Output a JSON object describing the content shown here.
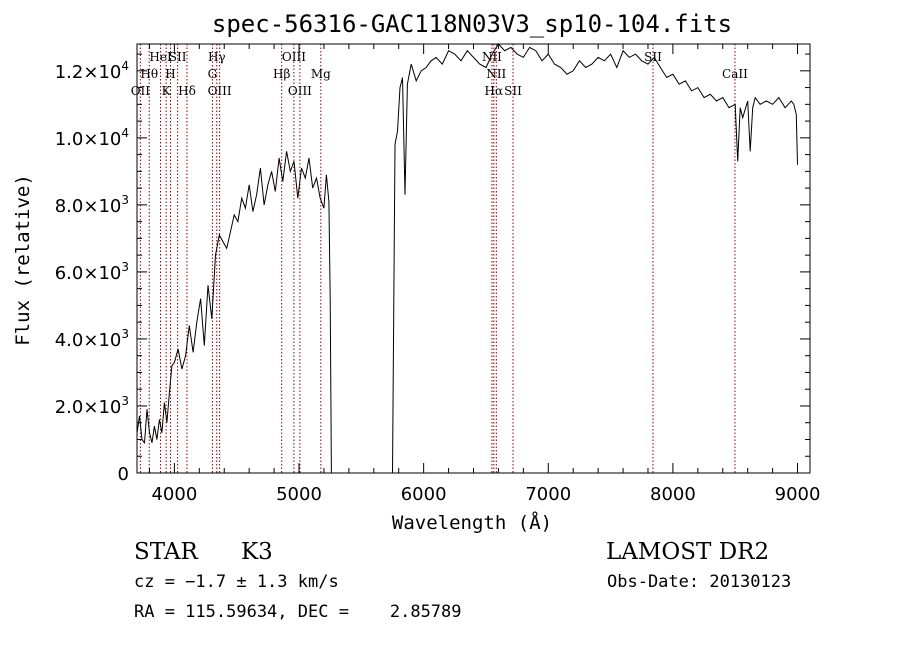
{
  "chart_data": {
    "type": "line",
    "title": "spec-56316-GAC118N03V3_sp10-104.fits",
    "xlabel": "Wavelength (Å)",
    "ylabel": "Flux (relative)",
    "xlim": [
      3700,
      9100
    ],
    "ylim": [
      0,
      12800
    ],
    "xticks": [
      4000,
      5000,
      6000,
      7000,
      8000,
      9000
    ],
    "xtick_labels": [
      "4000",
      "5000",
      "6000",
      "7000",
      "8000",
      "9000"
    ],
    "yticks": [
      0,
      2000,
      4000,
      6000,
      8000,
      10000,
      12000
    ],
    "ytick_labels": [
      {
        "mant": "0",
        "exp": ""
      },
      {
        "mant": "2.0×10",
        "exp": "3"
      },
      {
        "mant": "4.0×10",
        "exp": "3"
      },
      {
        "mant": "6.0×10",
        "exp": "3"
      },
      {
        "mant": "8.0×10",
        "exp": "3"
      },
      {
        "mant": "1.0×10",
        "exp": "4"
      },
      {
        "mant": "1.2×10",
        "exp": "4"
      }
    ],
    "grid": false,
    "line_color": "#000000",
    "marker_color": "#8b0000",
    "series": [
      {
        "x": [
          3700,
          3720,
          3740,
          3760,
          3780,
          3800,
          3820,
          3840,
          3860,
          3880,
          3900,
          3920,
          3940,
          3960,
          3980,
          4000,
          4030,
          4060,
          4090,
          4120,
          4150,
          4180,
          4210,
          4240,
          4270,
          4300,
          4330,
          4360,
          4390,
          4420,
          4450,
          4480,
          4510,
          4540,
          4570,
          4600,
          4630,
          4660,
          4690,
          4720,
          4750,
          4780,
          4810,
          4840,
          4870,
          4900,
          4930,
          4960,
          4990,
          5020,
          5050,
          5080,
          5110,
          5140,
          5170,
          5200,
          5220,
          5240,
          5250,
          5260,
          5750,
          5770,
          5790,
          5810,
          5830,
          5850,
          5870,
          5900,
          5940,
          5980,
          6020,
          6060,
          6100,
          6150,
          6200,
          6250,
          6300,
          6350,
          6400,
          6450,
          6500,
          6550,
          6600,
          6650,
          6700,
          6750,
          6800,
          6850,
          6900,
          6950,
          7000,
          7050,
          7100,
          7150,
          7200,
          7250,
          7300,
          7350,
          7400,
          7450,
          7500,
          7550,
          7600,
          7650,
          7700,
          7750,
          7800,
          7850,
          7900,
          7950,
          8000,
          8050,
          8100,
          8150,
          8200,
          8250,
          8300,
          8350,
          8400,
          8450,
          8500,
          8520,
          8540,
          8560,
          8600,
          8620,
          8640,
          8660,
          8700,
          8750,
          8800,
          8850,
          8900,
          8950,
          8970,
          8990,
          9000
        ],
        "y": [
          1200,
          1700,
          1000,
          900,
          1900,
          1200,
          900,
          1400,
          1000,
          1600,
          1200,
          2100,
          1500,
          2400,
          3200,
          3300,
          3700,
          3100,
          3500,
          4400,
          3600,
          4500,
          5200,
          3800,
          5600,
          4600,
          6500,
          7100,
          6900,
          6700,
          7200,
          7700,
          7500,
          8200,
          7900,
          8600,
          7800,
          8300,
          9100,
          8000,
          8600,
          9000,
          8400,
          9400,
          8700,
          9600,
          9000,
          9300,
          8200,
          9100,
          8800,
          9400,
          8500,
          8800,
          8200,
          7900,
          8900,
          8100,
          5200,
          0,
          0,
          9800,
          10200,
          11500,
          11800,
          8300,
          11600,
          12200,
          11700,
          12000,
          12100,
          12300,
          12400,
          12200,
          12600,
          12500,
          12300,
          12600,
          12400,
          12200,
          12100,
          12500,
          12800,
          12600,
          12700,
          12500,
          12400,
          12700,
          12600,
          12300,
          12500,
          12200,
          12100,
          11900,
          12000,
          12300,
          12100,
          12200,
          12400,
          12300,
          12500,
          12100,
          12600,
          12400,
          12500,
          12300,
          12200,
          12400,
          12100,
          11800,
          11900,
          11600,
          11700,
          11400,
          11500,
          11200,
          11300,
          11100,
          11200,
          10900,
          11000,
          9300,
          10900,
          10600,
          11100,
          9600,
          10900,
          11200,
          11000,
          11100,
          11000,
          11200,
          10900,
          11100,
          11000,
          10700,
          9200
        ]
      }
    ],
    "lines": [
      {
        "wl": 3727,
        "labels": [
          {
            "text": "OII",
            "row": 3
          }
        ]
      },
      {
        "wl": 3798,
        "labels": [
          {
            "text": "Hθ",
            "row": 2
          }
        ]
      },
      {
        "wl": 3889,
        "labels": [
          {
            "text": "HeI",
            "row": 1
          }
        ]
      },
      {
        "wl": 3934,
        "labels": [
          {
            "text": "K",
            "row": 3
          }
        ]
      },
      {
        "wl": 3969,
        "labels": [
          {
            "text": "H",
            "row": 2
          }
        ]
      },
      {
        "wl": 4026,
        "labels": [
          {
            "text": "SII",
            "row": 1
          }
        ]
      },
      {
        "wl": 4101,
        "labels": [
          {
            "text": "Hδ",
            "row": 3
          }
        ]
      },
      {
        "wl": 4305,
        "labels": [
          {
            "text": "G",
            "row": 2
          }
        ]
      },
      {
        "wl": 4340,
        "labels": [
          {
            "text": "Hγ",
            "row": 1
          }
        ]
      },
      {
        "wl": 4363,
        "labels": [
          {
            "text": "OIII",
            "row": 3
          }
        ]
      },
      {
        "wl": 4861,
        "labels": [
          {
            "text": "Hβ",
            "row": 2
          }
        ]
      },
      {
        "wl": 4959,
        "labels": [
          {
            "text": "OIII",
            "row": 1
          }
        ]
      },
      {
        "wl": 5007,
        "labels": [
          {
            "text": "OIII",
            "row": 3
          }
        ]
      },
      {
        "wl": 5175,
        "labels": [
          {
            "text": "Mg",
            "row": 2
          }
        ]
      },
      {
        "wl": 6548,
        "labels": [
          {
            "text": "NII",
            "row": 1
          }
        ]
      },
      {
        "wl": 6563,
        "labels": [
          {
            "text": "Hα",
            "row": 3
          }
        ]
      },
      {
        "wl": 6583,
        "labels": [
          {
            "text": "NII",
            "row": 2
          }
        ]
      },
      {
        "wl": 6717,
        "labels": [
          {
            "text": "SII",
            "row": 3
          }
        ]
      },
      {
        "wl": 7840,
        "labels": [
          {
            "text": "SII",
            "row": 1
          }
        ]
      },
      {
        "wl": 8498,
        "labels": [
          {
            "text": "CaII",
            "row": 2
          }
        ]
      }
    ]
  },
  "info": {
    "class_text": "STAR",
    "subclass_text": "K3",
    "cz_text": "cz = −1.7 ± 1.3 km/s",
    "radec_text": "RA = 115.59634, DEC =    2.85789",
    "survey_text": "LAMOST DR2",
    "obsdate_text": "Obs-Date: 20130123"
  }
}
